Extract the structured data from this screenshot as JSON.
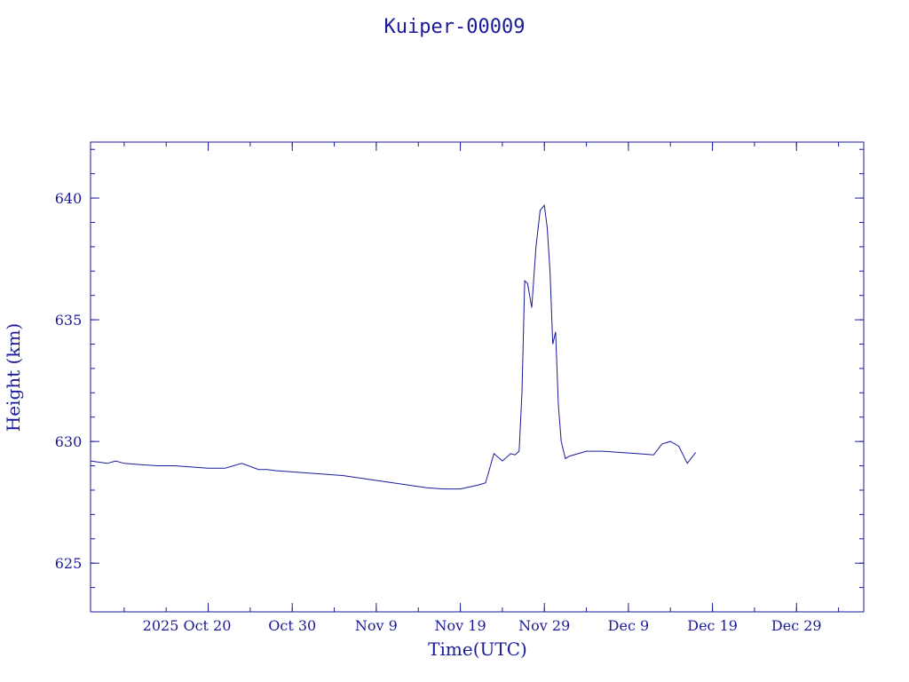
{
  "chart_data": {
    "type": "line",
    "title": "Kuiper-00009",
    "xlabel": "Time(UTC)",
    "ylabel": "Height (km)",
    "color": "#1a1a99",
    "xlim": [
      "2025-10-06",
      "2026-01-06"
    ],
    "ylim": [
      623.0,
      642.3
    ],
    "x_ticks": [
      "2025-10-20",
      "2025-10-30",
      "2025-11-09",
      "2025-11-19",
      "2025-11-29",
      "2025-12-09",
      "2025-12-19",
      "2025-12-29"
    ],
    "x_tick_labels": [
      "2025 Oct 20",
      "Oct 30",
      "Nov  9",
      "Nov 19",
      "Nov 29",
      "Dec  9",
      "Dec 19",
      "Dec 29"
    ],
    "y_ticks": [
      625,
      630,
      635,
      640
    ],
    "y_tick_labels": [
      "625",
      "630",
      "635",
      "640"
    ],
    "series": [
      {
        "x": [
          "2025-10-06",
          "2025-10-08",
          "2025-10-09",
          "2025-10-10",
          "2025-10-12",
          "2025-10-14",
          "2025-10-16",
          "2025-10-18",
          "2025-10-20",
          "2025-10-22",
          "2025-10-24",
          "2025-10-26",
          "2025-10-27",
          "2025-10-28",
          "2025-10-30",
          "2025-11-01",
          "2025-11-03",
          "2025-11-05",
          "2025-11-07",
          "2025-11-09",
          "2025-11-11",
          "2025-11-13",
          "2025-11-15",
          "2025-11-17",
          "2025-11-19",
          "2025-11-21",
          "2025-11-22",
          "2025-11-23",
          "2025-11-24",
          "2025-11-25",
          "2025-11-25 12:00",
          "2025-11-26",
          "2025-11-26 08:00",
          "2025-11-26 16:00",
          "2025-11-27",
          "2025-11-27 12:00",
          "2025-11-28",
          "2025-11-28 12:00",
          "2025-11-29",
          "2025-11-29 08:00",
          "2025-11-29 16:00",
          "2025-11-30",
          "2025-11-30 08:00",
          "2025-11-30 16:00",
          "2025-12-01",
          "2025-12-01 12:00",
          "2025-12-02",
          "2025-12-04",
          "2025-12-06",
          "2025-12-08",
          "2025-12-10",
          "2025-12-12",
          "2025-12-13",
          "2025-12-14",
          "2025-12-15",
          "2025-12-16",
          "2025-12-17"
        ],
        "values": [
          629.2,
          629.1,
          629.2,
          629.1,
          629.05,
          629.0,
          629.0,
          628.95,
          628.9,
          628.9,
          629.1,
          628.85,
          628.85,
          628.8,
          628.75,
          628.7,
          628.65,
          628.6,
          628.5,
          628.4,
          628.3,
          628.2,
          628.1,
          628.05,
          628.05,
          628.2,
          628.3,
          629.5,
          629.2,
          629.5,
          629.45,
          629.6,
          632.0,
          636.6,
          636.5,
          635.5,
          638.0,
          639.5,
          639.7,
          638.8,
          637.0,
          634.0,
          634.5,
          631.5,
          630.0,
          629.3,
          629.4,
          629.6,
          629.6,
          629.55,
          629.5,
          629.45,
          629.9,
          630.0,
          629.8,
          629.1,
          629.55
        ]
      }
    ]
  }
}
